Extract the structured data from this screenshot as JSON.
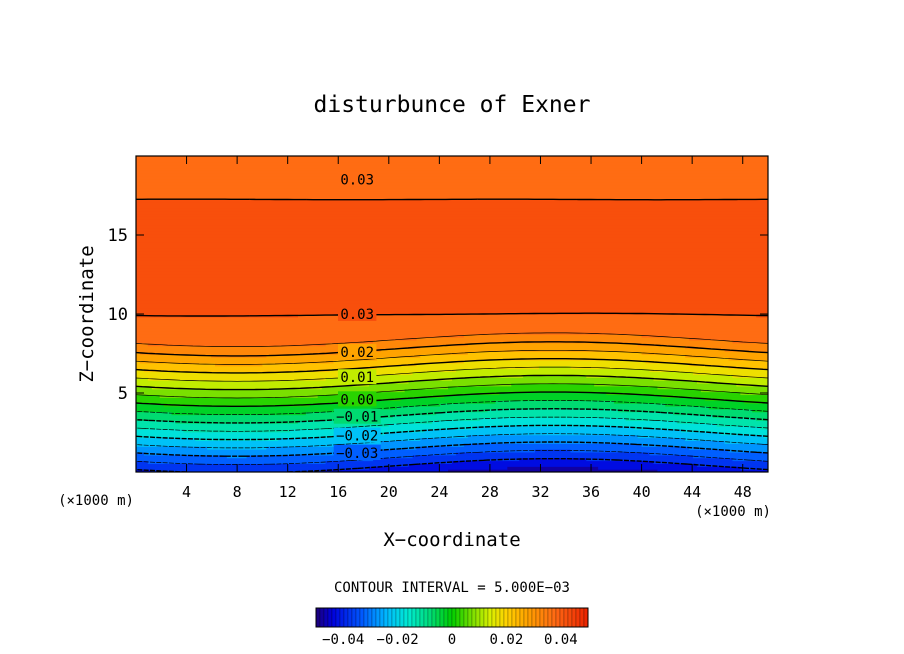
{
  "chart_data": {
    "type": "contour",
    "title": "disturbunce of Exner",
    "xlabel": "X−coordinate",
    "ylabel": "Z−coordinate",
    "x_unit": "(×1000 m)",
    "y_unit": "(×1000 m)",
    "xlim": [
      0,
      50
    ],
    "ylim": [
      0,
      20
    ],
    "x_ticks": [
      4,
      8,
      12,
      16,
      20,
      24,
      28,
      32,
      36,
      40,
      44,
      48
    ],
    "y_ticks": [
      5,
      10,
      15
    ],
    "contour_interval_text": "CONTOUR INTERVAL = 5.000E−03",
    "contour_interval": 0.005,
    "level_min": -0.045,
    "level_max": 0.045,
    "contour_labels": [
      {
        "text": "0.03",
        "x": 17.5,
        "z": 18.5
      },
      {
        "text": "0.03",
        "x": 17.5,
        "z": 10.0
      },
      {
        "text": "0.02",
        "x": 17.5,
        "z": 7.6
      },
      {
        "text": "0.01",
        "x": 17.5,
        "z": 6.0
      },
      {
        "text": "0.00",
        "x": 17.5,
        "z": 4.6
      },
      {
        "text": "−0.01",
        "x": 17.5,
        "z": 3.5
      },
      {
        "text": "−0.02",
        "x": 17.5,
        "z": 2.3
      },
      {
        "text": "−0.03",
        "x": 17.5,
        "z": 1.2
      }
    ],
    "colorbar": {
      "range": [
        -0.05,
        0.05
      ],
      "tick_values": [
        -0.04,
        -0.02,
        0,
        0.02,
        0.04
      ],
      "tick_labels": [
        "−0.04",
        "−0.02",
        "0",
        "0.02",
        "0.04"
      ]
    }
  }
}
